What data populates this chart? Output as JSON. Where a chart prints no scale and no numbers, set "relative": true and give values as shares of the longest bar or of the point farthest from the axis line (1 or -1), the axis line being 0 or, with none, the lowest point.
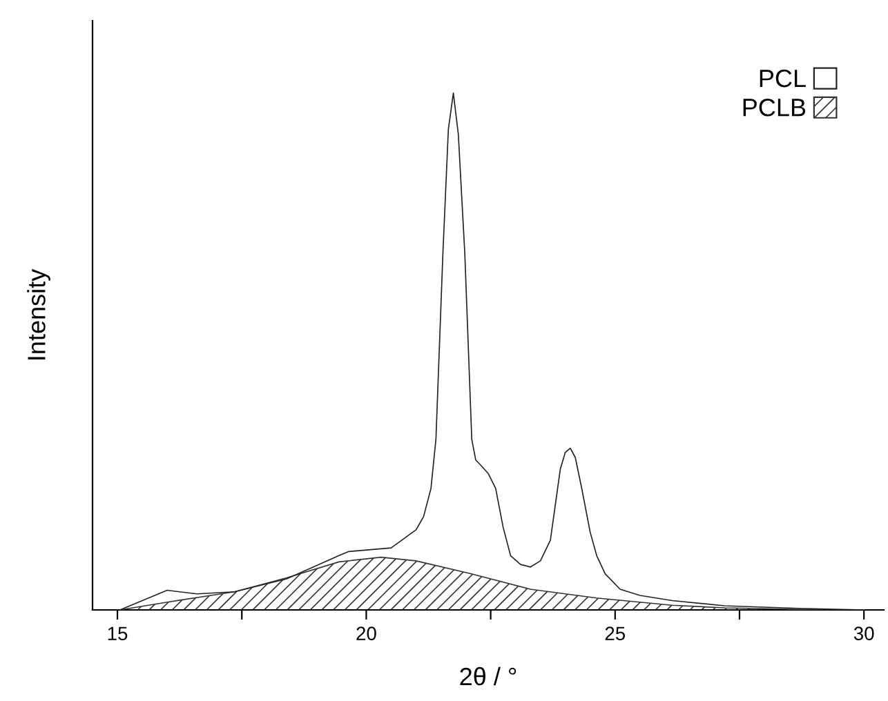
{
  "chart_data": {
    "type": "area",
    "xlabel": "2θ / °",
    "ylabel": "Intensity",
    "relative": true,
    "xlim": [
      14.5,
      30.4
    ],
    "xticks": [
      15,
      {
        "value": 17.5,
        "label": null
      },
      20,
      {
        "value": 22.5,
        "label": null
      },
      25,
      {
        "value": 27.5,
        "label": null
      },
      30
    ],
    "grid": false,
    "legend": "top right",
    "series": [
      {
        "name": "PCL",
        "color": "#222222",
        "x": [
          15.05,
          15.5,
          16.0,
          16.6,
          17.35,
          18.4,
          19.45,
          19.65,
          20.5,
          21.0,
          21.15,
          21.3,
          21.4,
          21.54,
          21.65,
          21.75,
          21.85,
          21.98,
          22.12,
          22.2,
          22.3,
          22.45,
          22.6,
          22.75,
          22.9,
          23.1,
          23.3,
          23.5,
          23.7,
          23.9,
          24.0,
          24.1,
          24.2,
          24.33,
          24.5,
          24.63,
          24.8,
          25.1,
          25.5,
          26.15,
          27.2,
          28.7,
          30.0
        ],
        "values": [
          0,
          0.018,
          0.038,
          0.031,
          0.035,
          0.06,
          0.105,
          0.113,
          0.12,
          0.155,
          0.18,
          0.235,
          0.33,
          0.69,
          0.93,
          1.0,
          0.92,
          0.69,
          0.33,
          0.29,
          0.28,
          0.264,
          0.235,
          0.16,
          0.105,
          0.088,
          0.083,
          0.095,
          0.135,
          0.273,
          0.305,
          0.313,
          0.295,
          0.235,
          0.15,
          0.105,
          0.07,
          0.04,
          0.028,
          0.018,
          0.008,
          0.003,
          0
        ]
      },
      {
        "name": "PCLB",
        "color": "#333333",
        "x": [
          15.05,
          16.0,
          17.35,
          18.4,
          19.45,
          20.3,
          21.0,
          22.1,
          23.3,
          24.63,
          26.15,
          27.2,
          28.7,
          30.0
        ],
        "values": [
          0,
          0.015,
          0.035,
          0.062,
          0.093,
          0.102,
          0.095,
          0.07,
          0.04,
          0.023,
          0.009,
          0.004,
          0.001,
          0
        ]
      }
    ]
  }
}
